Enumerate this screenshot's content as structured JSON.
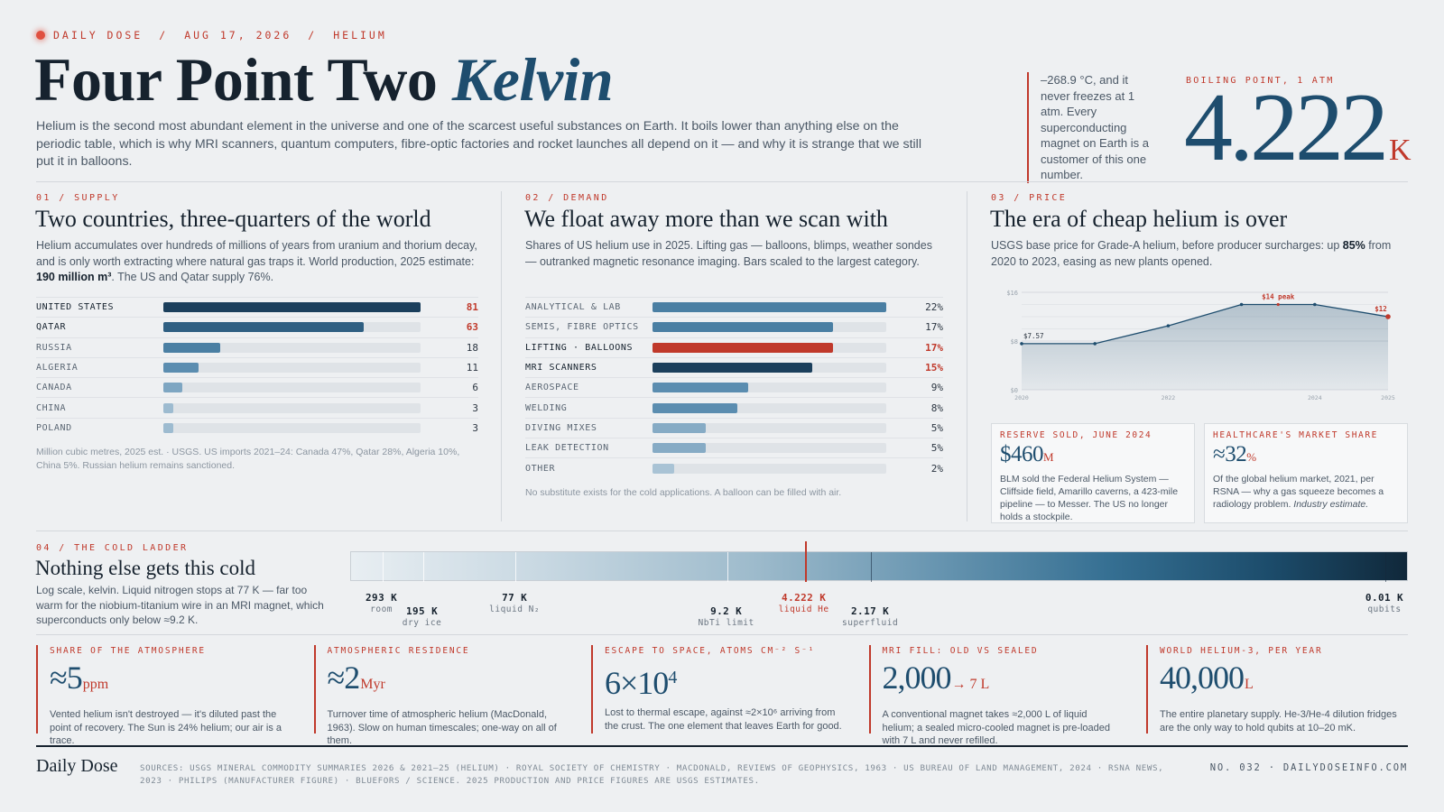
{
  "header": {
    "kicker": {
      "brand": "DAILY DOSE",
      "sep": "/",
      "date": "AUG 17, 2026",
      "topic": "HELIUM"
    },
    "title_main": "Four Point Two ",
    "title_accent": "Kelvin",
    "lede": "Helium is the second most abundant element in the universe and one of the scarcest useful substances on Earth. It boils lower than anything else on the periodic table, which is why MRI scanners, quantum computers, fibre-optic factories and rocket launches all depend on it — and why it is strange that we still put it in balloons.",
    "boiling_note": "–268.9 °C, and it never freezes at 1 atm. Every superconducting magnet on Earth is a customer of this one number.",
    "boiling_label": "BOILING POINT, 1 ATM",
    "boiling_value": "4.222",
    "boiling_unit": "K"
  },
  "supply": {
    "label": "01 / SUPPLY",
    "title": "Two countries, three-quarters of the world",
    "desc_pre": "Helium accumulates over hundreds of millions of years from uranium and thorium decay, and is only worth extracting where natural gas traps it. World production, 2025 estimate: ",
    "desc_bold": "190 million m³",
    "desc_post": ". The US and Qatar supply 76%.",
    "max": 81,
    "rows": [
      {
        "label": "UNITED STATES",
        "value": 81,
        "display": "81",
        "color": "#1b3f5c",
        "highlight": true
      },
      {
        "label": "QATAR",
        "value": 63,
        "display": "63",
        "color": "#2f5f82",
        "highlight": true
      },
      {
        "label": "RUSSIA",
        "value": 18,
        "display": "18",
        "color": "#4a7fa3",
        "highlight": false
      },
      {
        "label": "ALGERIA",
        "value": 11,
        "display": "11",
        "color": "#5b8db0",
        "highlight": false
      },
      {
        "label": "CANADA",
        "value": 6,
        "display": "6",
        "color": "#7ea6c2",
        "highlight": false
      },
      {
        "label": "CHINA",
        "value": 3,
        "display": "3",
        "color": "#9dbbd0",
        "highlight": false
      },
      {
        "label": "POLAND",
        "value": 3,
        "display": "3",
        "color": "#9dbbd0",
        "highlight": false
      }
    ],
    "note": "Million cubic metres, 2025 est. · USGS. US imports 2021–24: Canada 47%, Qatar 28%, Algeria 10%, China 5%. Russian helium remains sanctioned."
  },
  "demand": {
    "label": "02 / DEMAND",
    "title": "We float away more than we scan with",
    "desc": "Shares of US helium use in 2025. Lifting gas — balloons, blimps, weather sondes — outranked magnetic resonance imaging. Bars scaled to the largest category.",
    "max": 22,
    "rows": [
      {
        "label": "ANALYTICAL & LAB",
        "value": 22,
        "display": "22%",
        "color": "#4a7fa3",
        "highlight": false
      },
      {
        "label": "SEMIS, FIBRE OPTICS",
        "value": 17,
        "display": "17%",
        "color": "#4a7fa3",
        "highlight": false
      },
      {
        "label": "LIFTING · BALLOONS",
        "value": 17,
        "display": "17%",
        "color": "#c0392b",
        "highlight": true,
        "red": true
      },
      {
        "label": "MRI SCANNERS",
        "value": 15,
        "display": "15%",
        "color": "#1b3f5c",
        "highlight": true,
        "red": true
      },
      {
        "label": "AEROSPACE",
        "value": 9,
        "display": "9%",
        "color": "#5b8db0",
        "highlight": false
      },
      {
        "label": "WELDING",
        "value": 8,
        "display": "8%",
        "color": "#5b8db0",
        "highlight": false
      },
      {
        "label": "DIVING MIXES",
        "value": 5,
        "display": "5%",
        "color": "#86abc5",
        "highlight": false
      },
      {
        "label": "LEAK DETECTION",
        "value": 5,
        "display": "5%",
        "color": "#86abc5",
        "highlight": false
      },
      {
        "label": "OTHER",
        "value": 2,
        "display": "2%",
        "color": "#a9c3d5",
        "highlight": false
      }
    ],
    "note": "No substitute exists for the cold applications. A balloon can be filled with air."
  },
  "price": {
    "label": "03 / PRICE",
    "title": "The era of cheap helium is over",
    "desc_pre": "USGS base price for Grade-A helium, before producer surcharges: up ",
    "desc_bold": "85%",
    "desc_post": " from 2020 to 2023, easing as new plants opened.",
    "chart_data": {
      "type": "area",
      "x": [
        2020,
        2021,
        2022,
        2023,
        2024,
        2025
      ],
      "y": [
        7.57,
        7.57,
        10.5,
        14,
        14,
        12
      ],
      "xlim": [
        2020,
        2025
      ],
      "ylim": [
        0,
        16
      ],
      "y_ticks": [
        "$0",
        "$8",
        "$16"
      ],
      "x_ticks": [
        "2020",
        "2022",
        "2024",
        "2025"
      ],
      "annotations": [
        {
          "x": 2020,
          "y": 7.57,
          "text": "$7.57"
        },
        {
          "x": 2023.5,
          "y": 14,
          "text": "$14 peak"
        },
        {
          "x": 2025,
          "y": 12,
          "text": "$12"
        }
      ],
      "grid": true,
      "color": "#1e4d6e",
      "accent": "#c0392b"
    },
    "card1": {
      "label": "RESERVE SOLD, JUNE 2024",
      "value": "$460",
      "unit": "M",
      "text": "BLM sold the Federal Helium System — Cliffside field, Amarillo caverns, a 423-mile pipeline — to Messer. The US no longer holds a stockpile."
    },
    "card2": {
      "label": "HEALTHCARE'S MARKET SHARE",
      "value": "≈32",
      "unit": "%",
      "text_pre": "Of the global helium market, 2021, per RSNA — why a gas squeeze becomes a radiology problem. ",
      "text_italic": "Industry estimate."
    }
  },
  "cold": {
    "label": "04 / THE COLD LADDER",
    "title": "Nothing else gets this cold",
    "desc": "Log scale, kelvin. Liquid nitrogen stops at 77 K — far too warm for the niobium-titanium wire in an MRI magnet, which superconducts only below ≈9.2 K.",
    "scale": {
      "max_k": 300,
      "min_k": 0.01
    },
    "ticks": [
      {
        "value_k": 293,
        "label": "293 K",
        "sub": "room",
        "row": 0
      },
      {
        "value_k": 195,
        "label": "195 K",
        "sub": "dry ice",
        "row": 1
      },
      {
        "value_k": 77,
        "label": "77 K",
        "sub": "liquid N₂",
        "row": 0
      },
      {
        "value_k": 9.2,
        "label": "9.2 K",
        "sub": "NbTi limit",
        "row": 1
      },
      {
        "value_k": 4.222,
        "label": "4.222 K",
        "sub": "liquid He",
        "row": 0,
        "red": true
      },
      {
        "value_k": 2.17,
        "label": "2.17 K",
        "sub": "superfluid",
        "row": 1
      },
      {
        "value_k": 0.01,
        "label": "0.01 K",
        "sub": "qubits",
        "row": 0
      }
    ]
  },
  "stats": [
    {
      "label": "SHARE OF THE ATMOSPHERE",
      "value": "≈5",
      "unit": "ppm",
      "text": "Vented helium isn't destroyed — it's diluted past the point of recovery. The Sun is 24% helium; our air is a trace."
    },
    {
      "label": "ATMOSPHERIC RESIDENCE",
      "value": "≈2",
      "unit": "Myr",
      "text": "Turnover time of atmospheric helium (MacDonald, 1963). Slow on human timescales; one-way on all of them."
    },
    {
      "label": "ESCAPE TO SPACE, ATOMS CM⁻² S⁻¹",
      "value": "6×10",
      "sup": "4",
      "unit": "",
      "text": "Lost to thermal escape, against ≈2×10⁶ arriving from the crust. The one element that leaves Earth for good."
    },
    {
      "label": "MRI FILL: OLD VS SEALED",
      "value": "2,000",
      "unit": "→ 7 L",
      "text": "A conventional magnet takes ≈2,000 L of liquid helium; a sealed micro-cooled magnet is pre-loaded with 7 L and never refilled."
    },
    {
      "label": "WORLD HELIUM-3, PER YEAR",
      "value": "40,000",
      "unit": "L",
      "text": "The entire planetary supply. He-3/He-4 dilution fridges are the only way to hold qubits at 10–20 mK."
    }
  ],
  "footer": {
    "brand": "Daily Dose",
    "sources": "SOURCES: USGS MINERAL COMMODITY SUMMARIES 2026 & 2021–25 (HELIUM) · ROYAL SOCIETY OF CHEMISTRY · MACDONALD, REVIEWS OF GEOPHYSICS, 1963 · US BUREAU OF LAND MANAGEMENT, 2024 · RSNA NEWS, 2023 · PHILIPS (MANUFACTURER FIGURE) · BLUEFORS / SCIENCE. 2025 PRODUCTION AND PRICE FIGURES ARE USGS ESTIMATES.",
    "issue": "NO. 032 · DAILYDOSEINFO.COM"
  }
}
